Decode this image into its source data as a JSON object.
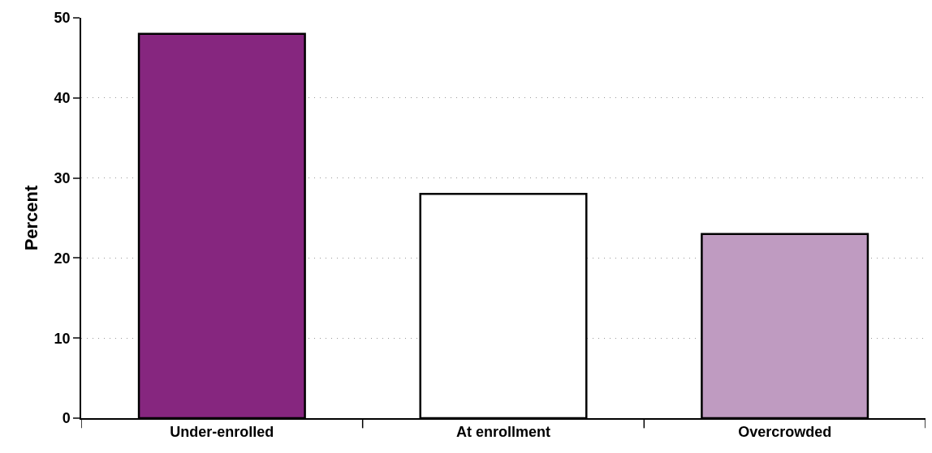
{
  "chart_data": {
    "type": "bar",
    "ylabel": "Percent",
    "categories": [
      "Under-enrolled",
      "At enrollment",
      "Overcrowded"
    ],
    "values": [
      48,
      28,
      23
    ],
    "colors": [
      "#86267f",
      "#ffffff",
      "#bf9bc1"
    ],
    "ylim": [
      0,
      50
    ],
    "yticks": [
      0,
      10,
      20,
      30,
      40,
      50
    ],
    "grid": "y"
  }
}
